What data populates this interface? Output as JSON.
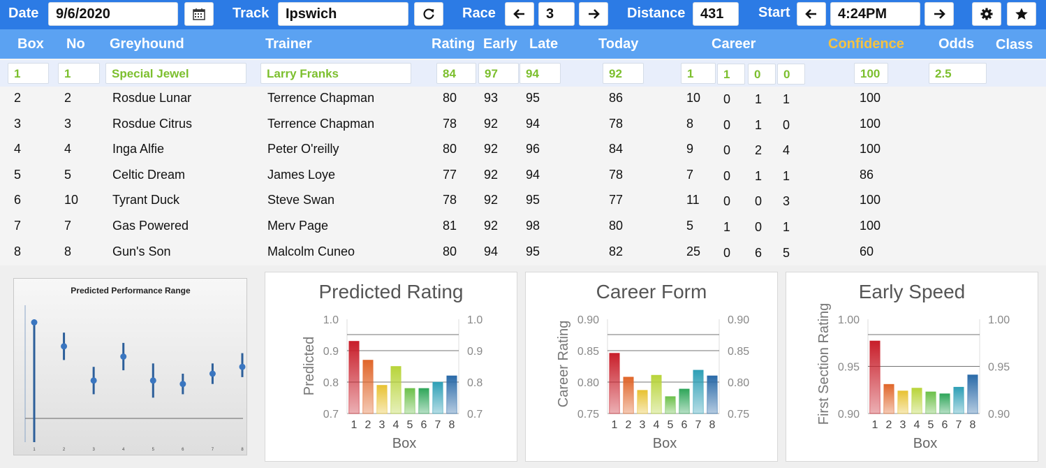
{
  "toolbar": {
    "date_label": "Date",
    "date_value": "9/6/2020",
    "track_label": "Track",
    "track_value": "Ipswich",
    "race_label": "Race",
    "race_value": "3",
    "distance_label": "Distance",
    "distance_value": "431",
    "start_label": "Start",
    "start_value": "4:24PM",
    "icons": [
      "calendar-icon",
      "refresh-icon",
      "arrow-left-icon",
      "arrow-right-icon",
      "gear-icon",
      "star-icon"
    ]
  },
  "table": {
    "headers": {
      "box": "Box",
      "no": "No",
      "greyhound": "Greyhound",
      "trainer": "Trainer",
      "rating": "Rating",
      "early": "Early",
      "late": "Late",
      "today": "Today",
      "career": "Career",
      "confidence": "Confidence",
      "odds": "Odds",
      "class": "Class"
    },
    "selected": {
      "box": "1",
      "no": "1",
      "greyhound": "Special Jewel",
      "trainer": "Larry Franks",
      "rating": "84",
      "early": "97",
      "late": "94",
      "today": "92",
      "career": [
        "1",
        "1",
        "0",
        "0"
      ],
      "confidence": "100",
      "odds": "2.5"
    },
    "rows": [
      {
        "box": "2",
        "no": "2",
        "greyhound": "Rosdue Lunar",
        "trainer": "Terrence Chapman",
        "rating": "80",
        "early": "93",
        "late": "95",
        "today": "86",
        "career": [
          "10",
          "0",
          "1",
          "1"
        ],
        "confidence": "100"
      },
      {
        "box": "3",
        "no": "3",
        "greyhound": "Rosdue Citrus",
        "trainer": "Terrence Chapman",
        "rating": "78",
        "early": "92",
        "late": "94",
        "today": "78",
        "career": [
          "8",
          "0",
          "1",
          "0"
        ],
        "confidence": "100"
      },
      {
        "box": "4",
        "no": "4",
        "greyhound": "Inga Alfie",
        "trainer": "Peter O'reilly",
        "rating": "80",
        "early": "92",
        "late": "96",
        "today": "84",
        "career": [
          "9",
          "0",
          "2",
          "4"
        ],
        "confidence": "100"
      },
      {
        "box": "5",
        "no": "5",
        "greyhound": "Celtic Dream",
        "trainer": "James Loye",
        "rating": "77",
        "early": "92",
        "late": "94",
        "today": "78",
        "career": [
          "7",
          "0",
          "1",
          "1"
        ],
        "confidence": "86"
      },
      {
        "box": "6",
        "no": "10",
        "greyhound": "Tyrant Duck",
        "trainer": "Steve Swan",
        "rating": "78",
        "early": "92",
        "late": "95",
        "today": "77",
        "career": [
          "11",
          "0",
          "0",
          "3"
        ],
        "confidence": "100"
      },
      {
        "box": "7",
        "no": "7",
        "greyhound": "Gas Powered",
        "trainer": "Merv Page",
        "rating": "81",
        "early": "92",
        "late": "98",
        "today": "80",
        "career": [
          "5",
          "1",
          "0",
          "1"
        ],
        "confidence": "100"
      },
      {
        "box": "8",
        "no": "8",
        "greyhound": "Gun's Son",
        "trainer": "Malcolm Cuneo",
        "rating": "80",
        "early": "94",
        "late": "95",
        "today": "82",
        "career": [
          "25",
          "0",
          "6",
          "5"
        ],
        "confidence": "60"
      }
    ]
  },
  "bar_colors": [
    "#c81e2a",
    "#e0662a",
    "#e8c233",
    "#b8d43a",
    "#6cc04a",
    "#2fa65a",
    "#2e9fb6",
    "#2a6aa8"
  ],
  "chart_data": [
    {
      "type": "scatter",
      "title": "Predicted Performance Range",
      "categories": [
        "1",
        "2",
        "3",
        "4",
        "5",
        "6",
        "7",
        "8"
      ],
      "points": [
        0.95,
        0.88,
        0.78,
        0.85,
        0.78,
        0.77,
        0.8,
        0.82
      ],
      "range_low": [
        0.62,
        0.84,
        0.74,
        0.81,
        0.73,
        0.74,
        0.77,
        0.79
      ],
      "range_high": [
        0.95,
        0.92,
        0.82,
        0.89,
        0.83,
        0.8,
        0.83,
        0.86
      ],
      "ylim": [
        0.6,
        1.0
      ]
    },
    {
      "type": "bar",
      "title": "Predicted Rating",
      "xlabel": "Box",
      "ylabel": "Predicted",
      "categories": [
        "1",
        "2",
        "3",
        "4",
        "5",
        "6",
        "7",
        "8"
      ],
      "values": [
        0.93,
        0.87,
        0.79,
        0.85,
        0.78,
        0.78,
        0.8,
        0.82
      ],
      "ylim": [
        0.7,
        1.0
      ],
      "ticks": [
        "1.0",
        "0.9",
        "0.8",
        "0.7"
      ]
    },
    {
      "type": "bar",
      "title": "Career Form",
      "xlabel": "Box",
      "ylabel": "Career Rating",
      "categories": [
        "1",
        "2",
        "3",
        "4",
        "5",
        "6",
        "7",
        "8"
      ],
      "values": [
        0.846,
        0.808,
        0.787,
        0.811,
        0.777,
        0.789,
        0.819,
        0.81
      ],
      "ylim": [
        0.75,
        0.9
      ],
      "ticks": [
        "0.90",
        "0.85",
        "0.80",
        "0.75"
      ]
    },
    {
      "type": "bar",
      "title": "Early Speed",
      "xlabel": "Box",
      "ylabel": "First Section Rating",
      "categories": [
        "1",
        "2",
        "3",
        "4",
        "5",
        "6",
        "7",
        "8"
      ],
      "values": [
        0.977,
        0.931,
        0.924,
        0.927,
        0.923,
        0.921,
        0.928,
        0.941
      ],
      "ylim": [
        0.9,
        1.0
      ],
      "ticks": [
        "1.00",
        "0.95",
        "0.90"
      ]
    }
  ]
}
